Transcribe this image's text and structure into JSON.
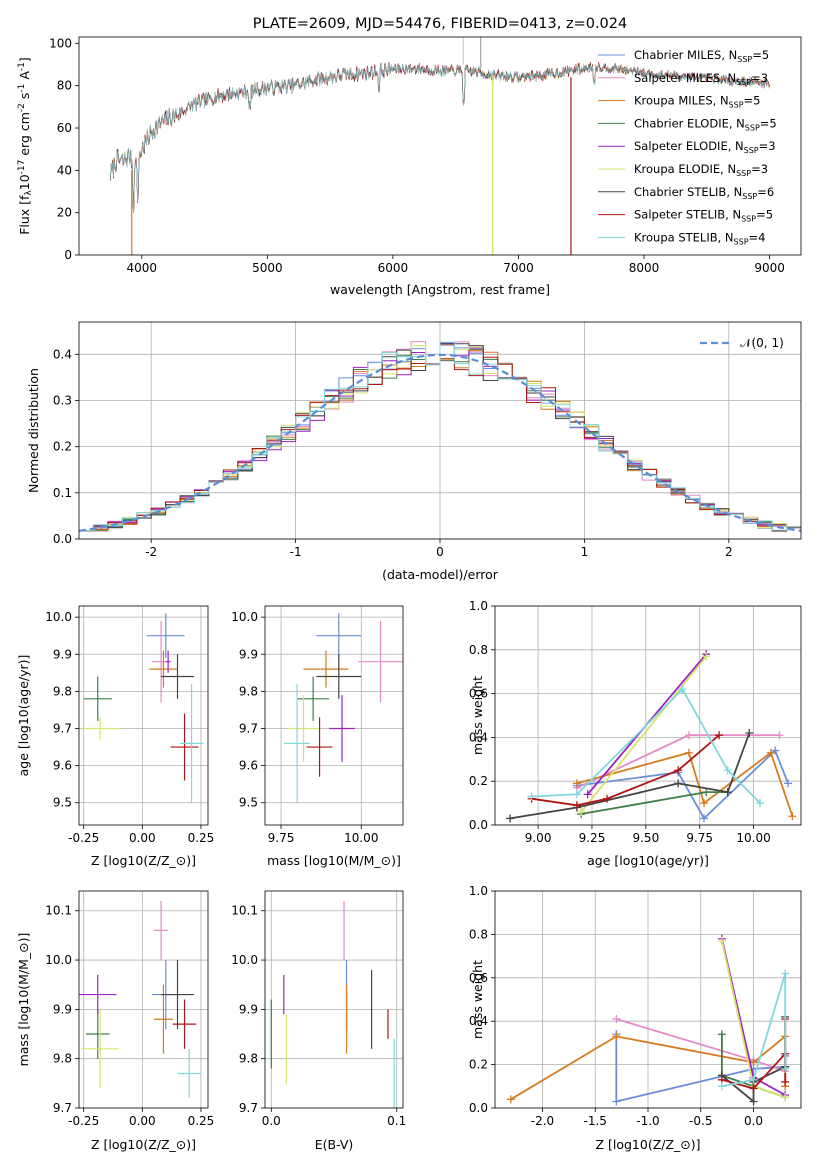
{
  "chart_data": [
    {
      "type": "line",
      "title": "PLATE=2609, MJD=54476, FIBERID=0413, z=0.024",
      "xlabel": "wavelength [Angstrom, rest frame]",
      "ylabel": "Flux [f_λ10^-17 erg cm^-2 s^-1 A^-1]",
      "xlim": [
        3500,
        9250
      ],
      "ylim": [
        0,
        103
      ],
      "xticks": [
        4000,
        5000,
        6000,
        7000,
        8000,
        9000
      ],
      "yticks": [
        0,
        20,
        40,
        60,
        80,
        100
      ],
      "legend_position": "right",
      "continuum": {
        "x": [
          3750,
          3800,
          3850,
          3900,
          3950,
          4000,
          4100,
          4200,
          4300,
          4400,
          4500,
          4600,
          4800,
          5000,
          5200,
          5400,
          5600,
          5800,
          6000,
          6200,
          6400,
          6600,
          6800,
          7000,
          7200,
          7400,
          7600,
          7800,
          8000,
          8200,
          8400,
          8600,
          8800,
          9000
        ],
        "y": [
          38,
          45,
          44,
          47,
          42,
          50,
          60,
          64,
          67,
          71,
          73,
          75,
          77,
          79,
          80,
          83,
          85,
          86,
          88,
          88,
          87,
          87,
          85,
          84,
          85,
          87,
          89,
          88,
          86,
          85,
          84,
          83,
          82,
          81
        ]
      },
      "series": [
        {
          "name": "Chabrier MILES, N_SSP=5",
          "color": "#6a8fd8"
        },
        {
          "name": "Salpeter MILES, N_SSP=3",
          "color": "#e58ac8"
        },
        {
          "name": "Kroupa MILES, N_SSP=5",
          "color": "#d87a1e"
        },
        {
          "name": "Chabrier ELODIE, N_SSP=5",
          "color": "#3f7d4a"
        },
        {
          "name": "Salpeter ELODIE, N_SSP=3",
          "color": "#a021c0"
        },
        {
          "name": "Kroupa ELODIE, N_SSP=3",
          "color": "#d7e36a"
        },
        {
          "name": "Chabrier STELIB, N_SSP=6",
          "color": "#444444"
        },
        {
          "name": "Salpeter STELIB, N_SSP=5",
          "color": "#b01515"
        },
        {
          "name": "Kroupa STELIB, N_SSP=4",
          "color": "#7fd8dc"
        }
      ]
    },
    {
      "type": "line",
      "xlabel": "(data-model)/error",
      "ylabel": "Normed distribution",
      "xlim": [
        -2.5,
        2.5
      ],
      "ylim": [
        0,
        0.47
      ],
      "xticks": [
        -2,
        -1,
        0,
        1,
        2
      ],
      "yticks": [
        0.0,
        0.1,
        0.2,
        0.3,
        0.4
      ],
      "grid": true,
      "legend_position": "top-right",
      "legend_entry": "𝒩(0, 1)",
      "normal_curve_color": "#5b8ed6",
      "bin_width": 0.1,
      "histogram_amplitude": [
        0.04,
        0.04,
        0.045,
        0.048,
        0.055,
        0.062,
        0.07,
        0.08,
        0.09,
        0.1,
        0.112,
        0.122,
        0.14,
        0.155,
        0.172,
        0.188,
        0.205,
        0.225,
        0.245,
        0.265,
        0.285,
        0.305,
        0.32,
        0.338,
        0.355,
        0.368,
        0.38,
        0.392,
        0.4,
        0.402,
        0.4,
        0.392,
        0.382,
        0.37,
        0.355,
        0.34,
        0.322,
        0.305,
        0.285,
        0.265,
        0.245,
        0.225,
        0.205,
        0.188,
        0.17,
        0.155,
        0.14,
        0.122,
        0.11,
        0.098,
        0.088,
        0.078,
        0.07,
        0.062,
        0.055,
        0.05,
        0.045,
        0.04,
        0.036,
        0.033,
        0.03,
        0.028,
        0.026,
        0.024,
        0.022,
        0.02,
        0.018,
        0.016,
        0.015,
        0.014
      ]
    },
    {
      "type": "scatter",
      "xlabel": "Z [log10(Z/Z_⊙)]",
      "ylabel": "age  [log10(age/yr)]",
      "xlim": [
        -0.27,
        0.28
      ],
      "ylim": [
        9.44,
        10.03
      ],
      "xticks": [
        -0.25,
        0.0,
        0.25
      ],
      "yticks": [
        9.5,
        9.6,
        9.7,
        9.8,
        9.9,
        10.0
      ],
      "grid": true,
      "points": [
        {
          "x": 0.1,
          "y": 9.95,
          "xerr": 0.08,
          "yerr": 0.06,
          "color": "#6a8fd8"
        },
        {
          "x": 0.08,
          "y": 9.88,
          "xerr": 0.04,
          "yerr": 0.11,
          "color": "#e58ac8"
        },
        {
          "x": 0.09,
          "y": 9.86,
          "xerr": 0.06,
          "yerr": 0.05,
          "color": "#d87a1e"
        },
        {
          "x": -0.19,
          "y": 9.78,
          "xerr": 0.06,
          "yerr": 0.06,
          "color": "#3f7d4a"
        },
        {
          "x": 0.11,
          "y": 9.88,
          "xerr": 0.01,
          "yerr": 0.03,
          "color": "#a021c0"
        },
        {
          "x": -0.18,
          "y": 9.7,
          "xerr": 0.08,
          "yerr": 0.03,
          "color": "#d7e36a"
        },
        {
          "x": 0.15,
          "y": 9.84,
          "xerr": 0.07,
          "yerr": 0.06,
          "color": "#444444"
        },
        {
          "x": 0.18,
          "y": 9.65,
          "xerr": 0.06,
          "yerr": 0.09,
          "color": "#b01515"
        },
        {
          "x": 0.21,
          "y": 9.66,
          "xerr": 0.05,
          "yerr": 0.16,
          "color": "#7fd8dc"
        }
      ]
    },
    {
      "type": "scatter",
      "xlabel": "mass [log10(M/M_⊙)]",
      "ylabel": "",
      "xlim": [
        9.7,
        10.13
      ],
      "ylim": [
        9.44,
        10.03
      ],
      "xticks": [
        9.75,
        10.0
      ],
      "yticks": [
        9.5,
        9.6,
        9.7,
        9.8,
        9.9,
        10.0
      ],
      "grid": true,
      "points": [
        {
          "x": 9.93,
          "y": 9.95,
          "xerr": 0.07,
          "yerr": 0.06,
          "color": "#6a8fd8"
        },
        {
          "x": 10.06,
          "y": 9.88,
          "xerr": 0.07,
          "yerr": 0.11,
          "color": "#e58ac8"
        },
        {
          "x": 9.89,
          "y": 9.86,
          "xerr": 0.07,
          "yerr": 0.05,
          "color": "#d87a1e"
        },
        {
          "x": 9.85,
          "y": 9.78,
          "xerr": 0.05,
          "yerr": 0.06,
          "color": "#3f7d4a"
        },
        {
          "x": 9.94,
          "y": 9.7,
          "xerr": 0.04,
          "yerr": 0.09,
          "color": "#a021c0"
        },
        {
          "x": 9.82,
          "y": 9.7,
          "xerr": 0.05,
          "yerr": 0.09,
          "color": "#d7e36a"
        },
        {
          "x": 9.93,
          "y": 9.84,
          "xerr": 0.07,
          "yerr": 0.06,
          "color": "#444444"
        },
        {
          "x": 9.87,
          "y": 9.65,
          "xerr": 0.04,
          "yerr": 0.08,
          "color": "#b01515"
        },
        {
          "x": 9.8,
          "y": 9.66,
          "xerr": 0.04,
          "yerr": 0.16,
          "color": "#7fd8dc"
        }
      ]
    },
    {
      "type": "line",
      "xlabel": "age  [log10(age/yr)]",
      "ylabel": "mass weight",
      "xlim": [
        8.8,
        10.22
      ],
      "ylim": [
        0,
        1.0
      ],
      "xticks": [
        9.0,
        9.25,
        9.5,
        9.75,
        10.0
      ],
      "yticks": [
        0.0,
        0.2,
        0.4,
        0.6,
        0.8,
        1.0
      ],
      "grid": true,
      "series": [
        {
          "color": "#6a8fd8",
          "x": [
            9.18,
            9.65,
            9.77,
            10.1,
            10.16
          ],
          "y": [
            0.18,
            0.24,
            0.03,
            0.34,
            0.19
          ]
        },
        {
          "color": "#e58ac8",
          "x": [
            9.18,
            9.7,
            10.12
          ],
          "y": [
            0.17,
            0.41,
            0.41
          ]
        },
        {
          "color": "#d87a1e",
          "x": [
            9.18,
            9.7,
            9.77,
            10.08,
            10.18
          ],
          "y": [
            0.19,
            0.33,
            0.1,
            0.33,
            0.04
          ]
        },
        {
          "color": "#3f7d4a",
          "x": [
            9.2,
            9.78,
            9.88
          ],
          "y": [
            0.05,
            0.15,
            0.15
          ]
        },
        {
          "color": "#a021c0",
          "x": [
            9.23,
            9.78
          ],
          "y": [
            0.14,
            0.78
          ]
        },
        {
          "color": "#d7e36a",
          "x": [
            9.2,
            9.78
          ],
          "y": [
            0.06,
            0.77
          ]
        },
        {
          "color": "#444444",
          "x": [
            8.87,
            9.18,
            9.65,
            9.88,
            9.98
          ],
          "y": [
            0.03,
            0.08,
            0.19,
            0.15,
            0.42
          ]
        },
        {
          "color": "#b01515",
          "x": [
            8.97,
            9.18,
            9.32,
            9.65,
            9.84
          ],
          "y": [
            0.12,
            0.09,
            0.12,
            0.25,
            0.41
          ]
        },
        {
          "color": "#7fd8dc",
          "x": [
            8.97,
            9.18,
            9.67,
            9.88,
            10.03
          ],
          "y": [
            0.13,
            0.14,
            0.62,
            0.25,
            0.1
          ]
        }
      ]
    },
    {
      "type": "scatter",
      "xlabel": "Z [log10(Z/Z_⊙)]",
      "ylabel": "mass [log10(M/M_⊙)]",
      "xlim": [
        -0.27,
        0.28
      ],
      "ylim": [
        9.7,
        10.14
      ],
      "xticks": [
        -0.25,
        0.0,
        0.25
      ],
      "yticks": [
        9.7,
        9.8,
        9.9,
        10.0,
        10.1
      ],
      "grid": true,
      "points": [
        {
          "x": 0.1,
          "y": 9.93,
          "xerr": 0.06,
          "yerr": 0.07,
          "color": "#6a8fd8"
        },
        {
          "x": 0.08,
          "y": 10.06,
          "xerr": 0.03,
          "yerr": 0.06,
          "color": "#e58ac8"
        },
        {
          "x": 0.09,
          "y": 9.88,
          "xerr": 0.04,
          "yerr": 0.07,
          "color": "#d87a1e"
        },
        {
          "x": -0.19,
          "y": 9.85,
          "xerr": 0.05,
          "yerr": 0.05,
          "color": "#3f7d4a"
        },
        {
          "x": -0.19,
          "y": 9.93,
          "xerr": 0.08,
          "yerr": 0.04,
          "color": "#a021c0"
        },
        {
          "x": -0.18,
          "y": 9.82,
          "xerr": 0.08,
          "yerr": 0.08,
          "color": "#d7e36a"
        },
        {
          "x": 0.15,
          "y": 9.93,
          "xerr": 0.07,
          "yerr": 0.07,
          "color": "#444444"
        },
        {
          "x": 0.18,
          "y": 9.87,
          "xerr": 0.05,
          "yerr": 0.05,
          "color": "#b01515"
        },
        {
          "x": 0.2,
          "y": 9.77,
          "xerr": 0.05,
          "yerr": 0.05,
          "color": "#7fd8dc"
        }
      ]
    },
    {
      "type": "scatter",
      "xlabel": "E(B-V)",
      "ylabel": "",
      "xlim": [
        -0.005,
        0.105
      ],
      "ylim": [
        9.7,
        10.14
      ],
      "xticks": [
        0.0,
        0.1
      ],
      "yticks": [
        9.7,
        9.8,
        9.9,
        10.0,
        10.1
      ],
      "grid": true,
      "points": [
        {
          "x": 0.06,
          "y": 9.93,
          "xerr": 0,
          "yerr": 0.07,
          "color": "#6a8fd8"
        },
        {
          "x": 0.058,
          "y": 10.06,
          "xerr": 0,
          "yerr": 0.06,
          "color": "#e58ac8"
        },
        {
          "x": 0.06,
          "y": 9.88,
          "xerr": 0,
          "yerr": 0.07,
          "color": "#d87a1e"
        },
        {
          "x": 0.0,
          "y": 9.85,
          "xerr": 0,
          "yerr": 0.07,
          "color": "#3f7d4a"
        },
        {
          "x": 0.01,
          "y": 9.93,
          "xerr": 0,
          "yerr": 0.04,
          "color": "#a021c0"
        },
        {
          "x": 0.012,
          "y": 9.82,
          "xerr": 0,
          "yerr": 0.07,
          "color": "#d7e36a"
        },
        {
          "x": 0.08,
          "y": 9.9,
          "xerr": 0,
          "yerr": 0.08,
          "color": "#444444"
        },
        {
          "x": 0.093,
          "y": 9.87,
          "xerr": 0,
          "yerr": 0.03,
          "color": "#b01515"
        },
        {
          "x": 0.098,
          "y": 9.77,
          "xerr": 0,
          "yerr": 0.07,
          "color": "#7fd8dc"
        }
      ]
    },
    {
      "type": "line",
      "xlabel": "Z [log10(Z/Z_⊙)]",
      "ylabel": "mass weight",
      "xlim": [
        -2.45,
        0.45
      ],
      "ylim": [
        0,
        1.0
      ],
      "xticks": [
        -2.0,
        -1.5,
        -1.0,
        -0.5,
        0.0
      ],
      "yticks": [
        0.0,
        0.2,
        0.4,
        0.6,
        0.8,
        1.0
      ],
      "grid": true,
      "series": [
        {
          "color": "#6a8fd8",
          "x": [
            -1.3,
            -1.3,
            0.0,
            0.3,
            0.3
          ],
          "y": [
            0.34,
            0.03,
            0.18,
            0.19,
            0.24
          ]
        },
        {
          "color": "#e58ac8",
          "x": [
            -1.3,
            0.0,
            0.3
          ],
          "y": [
            0.41,
            0.22,
            0.17
          ]
        },
        {
          "color": "#d87a1e",
          "x": [
            -2.3,
            -1.3,
            0.0,
            0.3,
            0.3
          ],
          "y": [
            0.04,
            0.33,
            0.21,
            0.33,
            0.1
          ]
        },
        {
          "color": "#3f7d4a",
          "x": [
            -0.3,
            -0.3,
            0.3
          ],
          "y": [
            0.34,
            0.15,
            0.05
          ]
        },
        {
          "color": "#a021c0",
          "x": [
            -0.3,
            0.0,
            0.3
          ],
          "y": [
            0.78,
            0.14,
            0.06
          ]
        },
        {
          "color": "#d7e36a",
          "x": [
            -0.3,
            0.0,
            0.3
          ],
          "y": [
            0.77,
            0.1,
            0.05
          ]
        },
        {
          "color": "#444444",
          "x": [
            -0.3,
            0.0,
            0.0,
            0.3,
            0.3
          ],
          "y": [
            0.15,
            0.03,
            0.12,
            0.19,
            0.42
          ]
        },
        {
          "color": "#b01515",
          "x": [
            -0.3,
            0.0,
            0.3,
            0.3,
            0.3
          ],
          "y": [
            0.13,
            0.09,
            0.25,
            0.41,
            0.12
          ]
        },
        {
          "color": "#7fd8dc",
          "x": [
            -0.3,
            0.0,
            0.3,
            0.3
          ],
          "y": [
            0.1,
            0.13,
            0.62,
            0.18
          ]
        }
      ]
    }
  ]
}
